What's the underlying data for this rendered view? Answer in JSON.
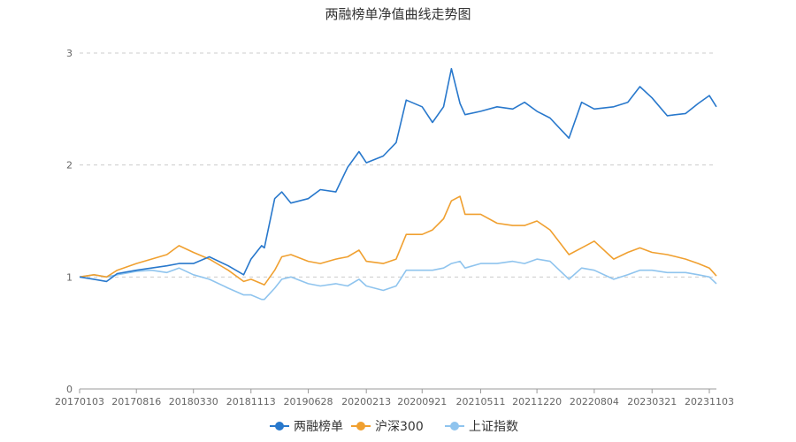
{
  "chart_data": {
    "type": "line",
    "title": "两融榜单净值曲线走势图",
    "xlabel": "",
    "ylabel": "",
    "ylim": [
      0,
      3
    ],
    "y_ticks": [
      "0",
      "1",
      "2",
      "3"
    ],
    "x_tick_labels": [
      "20170103",
      "20170816",
      "20180330",
      "20181113",
      "20190628",
      "20200213",
      "20200921",
      "20210511",
      "20211220",
      "20220804",
      "20230321",
      "20231103"
    ],
    "grid": true,
    "legend_position": "bottom",
    "series": [
      {
        "name": "两融榜单",
        "color": "#2878cc",
        "points": [
          [
            "20170103",
            1.0
          ],
          [
            "20170301",
            0.98
          ],
          [
            "20170420",
            0.96
          ],
          [
            "20170601",
            1.03
          ],
          [
            "20170816",
            1.06
          ],
          [
            "20171015",
            1.08
          ],
          [
            "20171215",
            1.1
          ],
          [
            "20180201",
            1.12
          ],
          [
            "20180330",
            1.12
          ],
          [
            "20180601",
            1.18
          ],
          [
            "20180815",
            1.1
          ],
          [
            "20181015",
            1.02
          ],
          [
            "20181113",
            1.16
          ],
          [
            "20181225",
            1.28
          ],
          [
            "20190105",
            1.26
          ],
          [
            "20190215",
            1.7
          ],
          [
            "20190315",
            1.76
          ],
          [
            "20190420",
            1.66
          ],
          [
            "20190628",
            1.7
          ],
          [
            "20190815",
            1.78
          ],
          [
            "20191015",
            1.76
          ],
          [
            "20191201",
            1.98
          ],
          [
            "20200115",
            2.12
          ],
          [
            "20200213",
            2.02
          ],
          [
            "20200420",
            2.08
          ],
          [
            "20200610",
            2.2
          ],
          [
            "20200720",
            2.58
          ],
          [
            "20200921",
            2.52
          ],
          [
            "20201101",
            2.38
          ],
          [
            "20201215",
            2.52
          ],
          [
            "20210115",
            2.86
          ],
          [
            "20210218",
            2.55
          ],
          [
            "20210310",
            2.45
          ],
          [
            "20210511",
            2.48
          ],
          [
            "20210715",
            2.52
          ],
          [
            "20210915",
            2.5
          ],
          [
            "20211101",
            2.56
          ],
          [
            "20211220",
            2.48
          ],
          [
            "20220210",
            2.42
          ],
          [
            "20220426",
            2.24
          ],
          [
            "20220615",
            2.56
          ],
          [
            "20220804",
            2.5
          ],
          [
            "20221020",
            2.52
          ],
          [
            "20221215",
            2.56
          ],
          [
            "20230201",
            2.7
          ],
          [
            "20230321",
            2.6
          ],
          [
            "20230520",
            2.44
          ],
          [
            "20230801",
            2.46
          ],
          [
            "20230920",
            2.55
          ],
          [
            "20231103",
            2.62
          ],
          [
            "20231201",
            2.52
          ]
        ]
      },
      {
        "name": "沪深300",
        "color": "#f0a030",
        "points": [
          [
            "20170103",
            1.0
          ],
          [
            "20170301",
            1.02
          ],
          [
            "20170420",
            1.0
          ],
          [
            "20170601",
            1.06
          ],
          [
            "20170816",
            1.12
          ],
          [
            "20171015",
            1.16
          ],
          [
            "20171215",
            1.2
          ],
          [
            "20180201",
            1.28
          ],
          [
            "20180330",
            1.22
          ],
          [
            "20180601",
            1.16
          ],
          [
            "20180815",
            1.06
          ],
          [
            "20181015",
            0.96
          ],
          [
            "20181113",
            0.98
          ],
          [
            "20181225",
            0.94
          ],
          [
            "20190105",
            0.93
          ],
          [
            "20190215",
            1.06
          ],
          [
            "20190315",
            1.18
          ],
          [
            "20190420",
            1.2
          ],
          [
            "20190628",
            1.14
          ],
          [
            "20190815",
            1.12
          ],
          [
            "20191015",
            1.16
          ],
          [
            "20191201",
            1.18
          ],
          [
            "20200115",
            1.24
          ],
          [
            "20200213",
            1.14
          ],
          [
            "20200420",
            1.12
          ],
          [
            "20200610",
            1.16
          ],
          [
            "20200720",
            1.38
          ],
          [
            "20200921",
            1.38
          ],
          [
            "20201101",
            1.42
          ],
          [
            "20201215",
            1.52
          ],
          [
            "20210115",
            1.68
          ],
          [
            "20210218",
            1.72
          ],
          [
            "20210310",
            1.56
          ],
          [
            "20210511",
            1.56
          ],
          [
            "20210715",
            1.48
          ],
          [
            "20210915",
            1.46
          ],
          [
            "20211101",
            1.46
          ],
          [
            "20211220",
            1.5
          ],
          [
            "20220210",
            1.42
          ],
          [
            "20220426",
            1.2
          ],
          [
            "20220615",
            1.26
          ],
          [
            "20220804",
            1.32
          ],
          [
            "20221020",
            1.16
          ],
          [
            "20221215",
            1.22
          ],
          [
            "20230201",
            1.26
          ],
          [
            "20230321",
            1.22
          ],
          [
            "20230520",
            1.2
          ],
          [
            "20230801",
            1.16
          ],
          [
            "20230920",
            1.12
          ],
          [
            "20231103",
            1.08
          ],
          [
            "20231201",
            1.01
          ]
        ]
      },
      {
        "name": "上证指数",
        "color": "#8fc4ee",
        "points": [
          [
            "20170103",
            1.0
          ],
          [
            "20170301",
            1.02
          ],
          [
            "20170420",
            1.0
          ],
          [
            "20170601",
            1.02
          ],
          [
            "20170816",
            1.05
          ],
          [
            "20171015",
            1.06
          ],
          [
            "20171215",
            1.04
          ],
          [
            "20180201",
            1.08
          ],
          [
            "20180330",
            1.02
          ],
          [
            "20180601",
            0.98
          ],
          [
            "20180815",
            0.9
          ],
          [
            "20181015",
            0.84
          ],
          [
            "20181113",
            0.84
          ],
          [
            "20181225",
            0.8
          ],
          [
            "20190105",
            0.8
          ],
          [
            "20190215",
            0.9
          ],
          [
            "20190315",
            0.98
          ],
          [
            "20190420",
            1.0
          ],
          [
            "20190628",
            0.94
          ],
          [
            "20190815",
            0.92
          ],
          [
            "20191015",
            0.94
          ],
          [
            "20191201",
            0.92
          ],
          [
            "20200115",
            0.98
          ],
          [
            "20200213",
            0.92
          ],
          [
            "20200420",
            0.88
          ],
          [
            "20200610",
            0.92
          ],
          [
            "20200720",
            1.06
          ],
          [
            "20200921",
            1.06
          ],
          [
            "20201101",
            1.06
          ],
          [
            "20201215",
            1.08
          ],
          [
            "20210115",
            1.12
          ],
          [
            "20210218",
            1.14
          ],
          [
            "20210310",
            1.08
          ],
          [
            "20210511",
            1.12
          ],
          [
            "20210715",
            1.12
          ],
          [
            "20210915",
            1.14
          ],
          [
            "20211101",
            1.12
          ],
          [
            "20211220",
            1.16
          ],
          [
            "20220210",
            1.14
          ],
          [
            "20220426",
            0.98
          ],
          [
            "20220615",
            1.08
          ],
          [
            "20220804",
            1.06
          ],
          [
            "20221020",
            0.98
          ],
          [
            "20221215",
            1.02
          ],
          [
            "20230201",
            1.06
          ],
          [
            "20230321",
            1.06
          ],
          [
            "20230520",
            1.04
          ],
          [
            "20230801",
            1.04
          ],
          [
            "20230920",
            1.02
          ],
          [
            "20231103",
            1.0
          ],
          [
            "20231201",
            0.94
          ]
        ]
      }
    ]
  }
}
